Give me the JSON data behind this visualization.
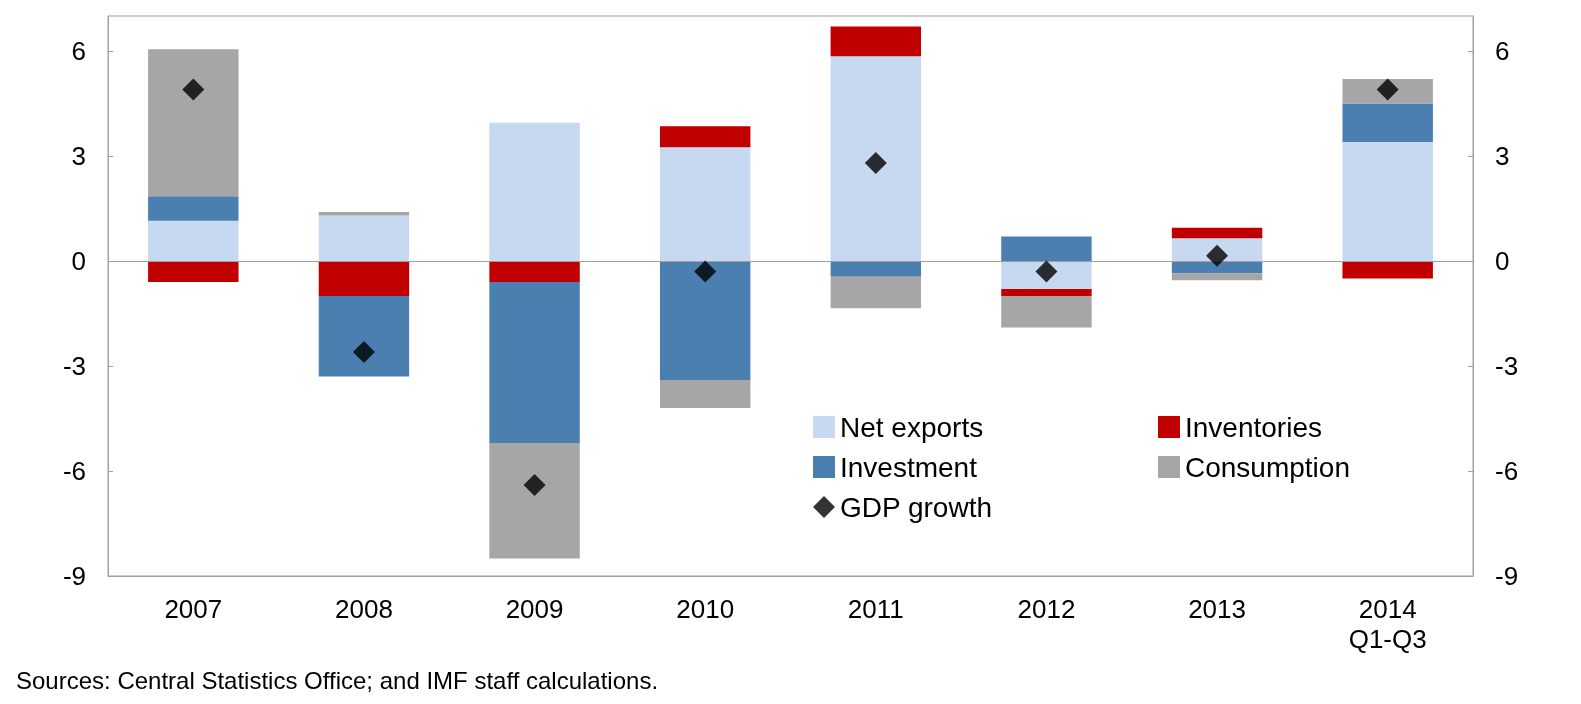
{
  "chart_data": {
    "type": "bar",
    "stacked": true,
    "categories": [
      "2007",
      "2008",
      "2009",
      "2010",
      "2011",
      "2012",
      "2013",
      "2014\nQ1-Q3"
    ],
    "series": [
      {
        "name": "Net exports",
        "color": "#c6d9f0",
        "values": [
          1.15,
          1.3,
          3.95,
          3.25,
          5.85,
          -0.8,
          0.65,
          3.4
        ]
      },
      {
        "name": "Inventories",
        "color": "#c00000",
        "values": [
          -0.6,
          -1.0,
          -0.6,
          0.6,
          0.85,
          -0.2,
          0.3,
          -0.5
        ]
      },
      {
        "name": "Investment",
        "color": "#4a7fb0",
        "values": [
          0.7,
          -2.3,
          -4.6,
          -3.4,
          -0.45,
          0.7,
          -0.35,
          1.1
        ]
      },
      {
        "name": "Consumption",
        "color": "#a6a6a6",
        "values": [
          4.2,
          0.1,
          -3.3,
          -0.8,
          -0.9,
          -0.9,
          -0.2,
          0.7
        ]
      },
      {
        "name": "GDP growth",
        "type": "scatter",
        "color": "#000000",
        "marker": "diamond",
        "values": [
          4.9,
          -2.6,
          -6.4,
          -0.3,
          2.8,
          -0.3,
          0.15,
          4.9
        ]
      }
    ],
    "ylim": [
      -9,
      7
    ],
    "yticks": [
      -9,
      -6,
      -3,
      0,
      3,
      6
    ],
    "y2lim": [
      -9,
      7
    ],
    "y2ticks": [
      -9,
      -6,
      -3,
      0,
      3,
      6
    ],
    "grid": false,
    "legend": "bottom right",
    "ref_lines": [
      {
        "axis": "y",
        "value": 0,
        "color": "#a0a0a0"
      }
    ],
    "annotations": [
      "Sources: Central Statistics Office; and IMF staff calculations."
    ]
  }
}
